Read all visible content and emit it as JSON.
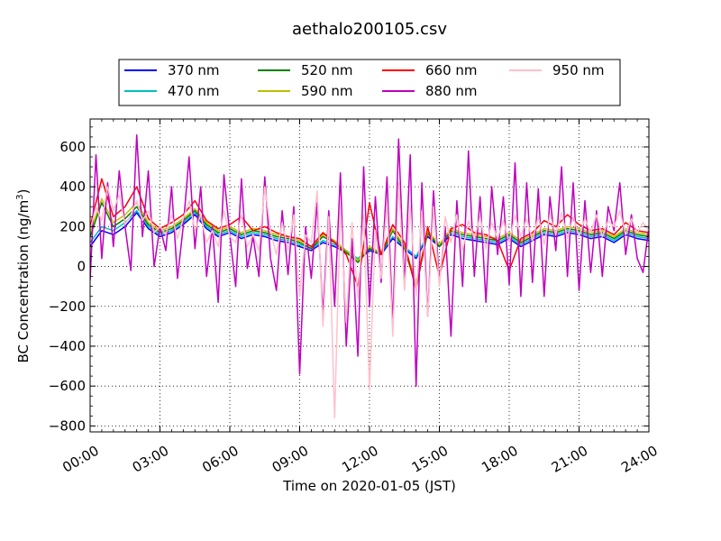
{
  "chart_data": {
    "type": "line",
    "title": "aethalo200105.csv",
    "xlabel": "Time on 2020-01-05 (JST)",
    "ylabel": "BC Concentration (ng/m³)",
    "ylabel_main": "BC Concentration (ng/m",
    "ylabel_sup": "3",
    "ylabel_close": ")",
    "xlim": [
      0,
      24
    ],
    "ylim": [
      -830,
      740
    ],
    "grid": true,
    "legend_placement": "top, above plot",
    "xticks": [
      {
        "v": 0,
        "label": "00:00"
      },
      {
        "v": 3,
        "label": "03:00"
      },
      {
        "v": 6,
        "label": "06:00"
      },
      {
        "v": 9,
        "label": "09:00"
      },
      {
        "v": 12,
        "label": "12:00"
      },
      {
        "v": 15,
        "label": "15:00"
      },
      {
        "v": 18,
        "label": "18:00"
      },
      {
        "v": 21,
        "label": "21:00"
      },
      {
        "v": 24,
        "label": "24:00"
      }
    ],
    "yticks": [
      {
        "v": 600,
        "label": "600"
      },
      {
        "v": 400,
        "label": "400"
      },
      {
        "v": 200,
        "label": "200"
      },
      {
        "v": 0,
        "label": "0"
      },
      {
        "v": -200,
        "label": "−200"
      },
      {
        "v": -400,
        "label": "−400"
      },
      {
        "v": -600,
        "label": "−600"
      },
      {
        "v": -800,
        "label": "−800"
      }
    ],
    "series": [
      {
        "name": "370 nm",
        "color": "#0000ff",
        "x": [
          0,
          0.5,
          1,
          1.5,
          2,
          2.5,
          3,
          3.5,
          4,
          4.5,
          5,
          5.5,
          6,
          6.5,
          7,
          7.5,
          8,
          8.5,
          9,
          9.5,
          10,
          10.5,
          11,
          11.5,
          12,
          12.5,
          13,
          13.5,
          14,
          14.5,
          15,
          15.5,
          16,
          16.5,
          17,
          17.5,
          18,
          18.5,
          19,
          19.5,
          20,
          20.5,
          21,
          21.5,
          22,
          22.5,
          23,
          23.5,
          24
        ],
        "values": [
          100,
          180,
          160,
          200,
          270,
          190,
          150,
          170,
          210,
          260,
          190,
          150,
          170,
          140,
          160,
          150,
          130,
          120,
          100,
          80,
          120,
          100,
          70,
          30,
          80,
          60,
          140,
          90,
          40,
          150,
          100,
          160,
          140,
          130,
          120,
          110,
          140,
          100,
          130,
          160,
          150,
          170,
          160,
          140,
          150,
          120,
          160,
          140,
          130
        ]
      },
      {
        "name": "470 nm",
        "color": "#00bfbf",
        "x": [
          0,
          0.5,
          1,
          1.5,
          2,
          2.5,
          3,
          3.5,
          4,
          4.5,
          5,
          5.5,
          6,
          6.5,
          7,
          7.5,
          8,
          8.5,
          9,
          9.5,
          10,
          10.5,
          11,
          11.5,
          12,
          12.5,
          13,
          13.5,
          14,
          14.5,
          15,
          15.5,
          16,
          16.5,
          17,
          17.5,
          18,
          18.5,
          19,
          19.5,
          20,
          20.5,
          21,
          21.5,
          22,
          22.5,
          23,
          23.5,
          24
        ],
        "values": [
          120,
          200,
          180,
          220,
          280,
          200,
          160,
          180,
          220,
          270,
          200,
          160,
          180,
          150,
          170,
          160,
          140,
          130,
          110,
          90,
          130,
          110,
          80,
          40,
          90,
          70,
          150,
          100,
          50,
          160,
          110,
          170,
          150,
          140,
          130,
          120,
          150,
          110,
          140,
          170,
          160,
          180,
          170,
          150,
          160,
          130,
          170,
          150,
          140
        ]
      },
      {
        "name": "520 nm",
        "color": "#008000",
        "x": [
          0,
          0.5,
          1,
          1.5,
          2,
          2.5,
          3,
          3.5,
          4,
          4.5,
          5,
          5.5,
          6,
          6.5,
          7,
          7.5,
          8,
          8.5,
          9,
          9.5,
          10,
          10.5,
          11,
          11.5,
          12,
          12.5,
          13,
          13.5,
          14,
          14.5,
          15,
          15.5,
          16,
          16.5,
          17,
          17.5,
          18,
          18.5,
          19,
          19.5,
          20,
          20.5,
          21,
          21.5,
          22,
          22.5,
          23,
          23.5,
          24
        ],
        "values": [
          150,
          320,
          200,
          240,
          300,
          210,
          170,
          190,
          230,
          280,
          210,
          170,
          190,
          160,
          180,
          170,
          150,
          140,
          120,
          90,
          150,
          120,
          70,
          20,
          90,
          60,
          180,
          90,
          -100,
          170,
          100,
          180,
          160,
          150,
          140,
          130,
          160,
          120,
          150,
          180,
          170,
          190,
          180,
          160,
          170,
          140,
          180,
          160,
          150
        ]
      },
      {
        "name": "590 nm",
        "color": "#bfbf00",
        "x": [
          0,
          0.5,
          1,
          1.5,
          2,
          2.5,
          3,
          3.5,
          4,
          4.5,
          5,
          5.5,
          6,
          6.5,
          7,
          7.5,
          8,
          8.5,
          9,
          9.5,
          10,
          10.5,
          11,
          11.5,
          12,
          12.5,
          13,
          13.5,
          14,
          14.5,
          15,
          15.5,
          16,
          16.5,
          17,
          17.5,
          18,
          18.5,
          19,
          19.5,
          20,
          20.5,
          21,
          21.5,
          22,
          22.5,
          23,
          23.5,
          24
        ],
        "values": [
          170,
          340,
          220,
          260,
          320,
          220,
          180,
          200,
          240,
          290,
          220,
          180,
          200,
          170,
          190,
          180,
          160,
          150,
          130,
          100,
          160,
          130,
          80,
          30,
          100,
          70,
          190,
          100,
          -80,
          180,
          110,
          190,
          170,
          160,
          150,
          140,
          170,
          130,
          160,
          190,
          180,
          200,
          190,
          170,
          180,
          150,
          190,
          170,
          160
        ]
      },
      {
        "name": "660 nm",
        "color": "#ff0000",
        "x": [
          0,
          0.5,
          1,
          1.5,
          2,
          2.5,
          3,
          3.5,
          4,
          4.5,
          5,
          5.5,
          6,
          6.5,
          7,
          7.5,
          8,
          8.5,
          9,
          9.5,
          10,
          10.5,
          11,
          11.5,
          12,
          12.5,
          13,
          13.5,
          14,
          14.5,
          15,
          15.5,
          16,
          16.5,
          17,
          17.5,
          18,
          18.5,
          19,
          19.5,
          20,
          20.5,
          21,
          21.5,
          22,
          22.5,
          23,
          23.5,
          24
        ],
        "values": [
          200,
          440,
          250,
          300,
          400,
          240,
          190,
          220,
          260,
          330,
          230,
          190,
          210,
          250,
          180,
          200,
          170,
          150,
          140,
          100,
          170,
          120,
          60,
          -100,
          320,
          60,
          210,
          120,
          -120,
          200,
          -50,
          190,
          210,
          170,
          160,
          130,
          -20,
          140,
          170,
          230,
          200,
          260,
          210,
          180,
          190,
          160,
          220,
          180,
          170
        ]
      },
      {
        "name": "880 nm",
        "color": "#bf00bf",
        "x": [
          0,
          0.25,
          0.5,
          0.75,
          1,
          1.25,
          1.5,
          1.75,
          2,
          2.25,
          2.5,
          2.75,
          3,
          3.25,
          3.5,
          3.75,
          4,
          4.25,
          4.5,
          4.75,
          5,
          5.25,
          5.5,
          5.75,
          6,
          6.25,
          6.5,
          6.75,
          7,
          7.25,
          7.5,
          7.75,
          8,
          8.25,
          8.5,
          8.75,
          9,
          9.25,
          9.5,
          9.75,
          10,
          10.25,
          10.5,
          10.75,
          11,
          11.25,
          11.5,
          11.75,
          12,
          12.25,
          12.5,
          12.75,
          13,
          13.25,
          13.5,
          13.75,
          14,
          14.25,
          14.5,
          14.75,
          15,
          15.25,
          15.5,
          15.75,
          16,
          16.25,
          16.5,
          16.75,
          17,
          17.25,
          17.5,
          17.75,
          18,
          18.25,
          18.5,
          18.75,
          19,
          19.25,
          19.5,
          19.75,
          20,
          20.25,
          20.5,
          20.75,
          21,
          21.25,
          21.5,
          21.75,
          22,
          22.25,
          22.5,
          22.75,
          23,
          23.25,
          23.5,
          23.75,
          24
        ],
        "values": [
          -70,
          560,
          40,
          420,
          100,
          480,
          200,
          -20,
          660,
          150,
          480,
          0,
          200,
          80,
          400,
          -60,
          200,
          550,
          90,
          400,
          -50,
          200,
          -180,
          460,
          160,
          -100,
          440,
          -10,
          150,
          -50,
          450,
          40,
          -120,
          280,
          -40,
          300,
          -540,
          200,
          -60,
          320,
          -240,
          280,
          -200,
          470,
          -400,
          140,
          -450,
          500,
          -200,
          350,
          -80,
          450,
          -300,
          640,
          -100,
          560,
          -600,
          420,
          -250,
          380,
          -80,
          200,
          -350,
          330,
          -100,
          580,
          -50,
          350,
          -180,
          400,
          60,
          350,
          -90,
          520,
          -150,
          420,
          -80,
          390,
          -150,
          350,
          80,
          500,
          -50,
          420,
          -120,
          330,
          -30,
          280,
          -50,
          300,
          180,
          420,
          60,
          260,
          40,
          -30,
          200
        ]
      },
      {
        "name": "950 nm",
        "color": "#ffc0cb",
        "x": [
          0,
          0.25,
          0.5,
          0.75,
          1,
          1.25,
          1.5,
          1.75,
          2,
          2.25,
          2.5,
          2.75,
          3,
          3.25,
          3.5,
          3.75,
          4,
          4.25,
          4.5,
          4.75,
          5,
          5.25,
          5.5,
          5.75,
          6,
          6.25,
          6.5,
          6.75,
          7,
          7.25,
          7.5,
          7.75,
          8,
          8.25,
          8.5,
          8.75,
          9,
          9.25,
          9.5,
          9.75,
          10,
          10.25,
          10.5,
          10.75,
          11,
          11.25,
          11.5,
          11.75,
          12,
          12.25,
          12.5,
          12.75,
          13,
          13.25,
          13.5,
          13.75,
          14,
          14.25,
          14.5,
          14.75,
          15,
          15.25,
          15.5,
          15.75,
          16,
          16.25,
          16.5,
          16.75,
          17,
          17.25,
          17.5,
          17.75,
          18,
          18.25,
          18.5,
          18.75,
          19,
          19.25,
          19.5,
          19.75,
          20,
          20.25,
          20.5,
          20.75,
          21,
          21.25,
          21.5,
          21.75,
          22,
          22.25,
          22.5,
          22.75,
          23,
          23.25,
          23.5,
          23.75,
          24
        ],
        "values": [
          180,
          300,
          230,
          400,
          280,
          360,
          210,
          260,
          330,
          230,
          280,
          170,
          200,
          160,
          260,
          140,
          240,
          330,
          180,
          260,
          120,
          180,
          100,
          280,
          150,
          120,
          260,
          100,
          160,
          80,
          400,
          180,
          60,
          220,
          80,
          260,
          -150,
          160,
          120,
          380,
          -300,
          250,
          -760,
          300,
          -280,
          220,
          -160,
          260,
          -620,
          180,
          -60,
          320,
          -350,
          420,
          -120,
          300,
          -150,
          280,
          -250,
          300,
          -100,
          250,
          120,
          260,
          80,
          230,
          140,
          250,
          90,
          220,
          140,
          230,
          120,
          260,
          150,
          240,
          130,
          250,
          110,
          260,
          160,
          270,
          140,
          250,
          150,
          240,
          170,
          260,
          150,
          230,
          200,
          280,
          160,
          240,
          170,
          220,
          180
        ]
      }
    ]
  }
}
